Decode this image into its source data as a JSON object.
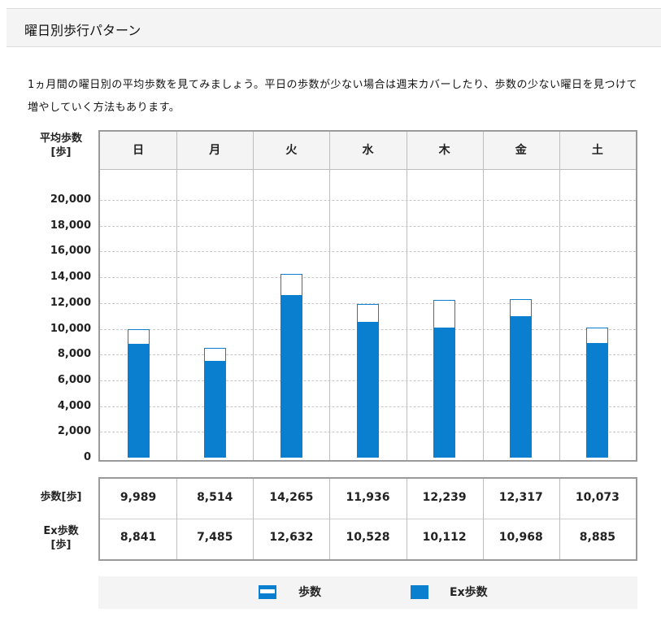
{
  "header": {
    "title": "曜日別歩行パターン"
  },
  "intro": {
    "text": "1ヵ月間の曜日別の平均歩数を見てみましょう。平日の歩数が少ない場合は週末カバーしたり、歩数の少ない曜日を見つけて増やしていく方法もあります。"
  },
  "colors": {
    "accent": "#0a7fcf",
    "panel_border": "#9a9a9a",
    "header_bg": "#f4f4f4"
  },
  "chart_data": {
    "type": "bar",
    "categories": [
      "日",
      "月",
      "火",
      "水",
      "木",
      "金",
      "土"
    ],
    "series": [
      {
        "name": "歩数",
        "values": [
          9989,
          8514,
          14265,
          11936,
          12239,
          12317,
          10073
        ]
      },
      {
        "name": "Ex歩数",
        "values": [
          8841,
          7485,
          12632,
          10528,
          10112,
          10968,
          8885
        ]
      }
    ],
    "ylabel": "平均歩数 [歩]",
    "ylim": [
      0,
      20000
    ],
    "yticks": [
      "20,000",
      "18,000",
      "16,000",
      "14,000",
      "12,000",
      "10,000",
      "8,000",
      "6,000",
      "4,000",
      "2,000",
      "0"
    ],
    "grid": true,
    "legend_position": "bottom"
  },
  "table": {
    "row1_label": "歩数[歩]",
    "row1_values": [
      "9,989",
      "8,514",
      "14,265",
      "11,936",
      "12,239",
      "12,317",
      "10,073"
    ],
    "row2_label": "Ex歩数 [歩]",
    "row2_values": [
      "8,841",
      "7,485",
      "12,632",
      "10,528",
      "10,112",
      "10,968",
      "8,885"
    ]
  },
  "legend": {
    "total_label": "歩数",
    "ex_label": "Ex歩数"
  }
}
